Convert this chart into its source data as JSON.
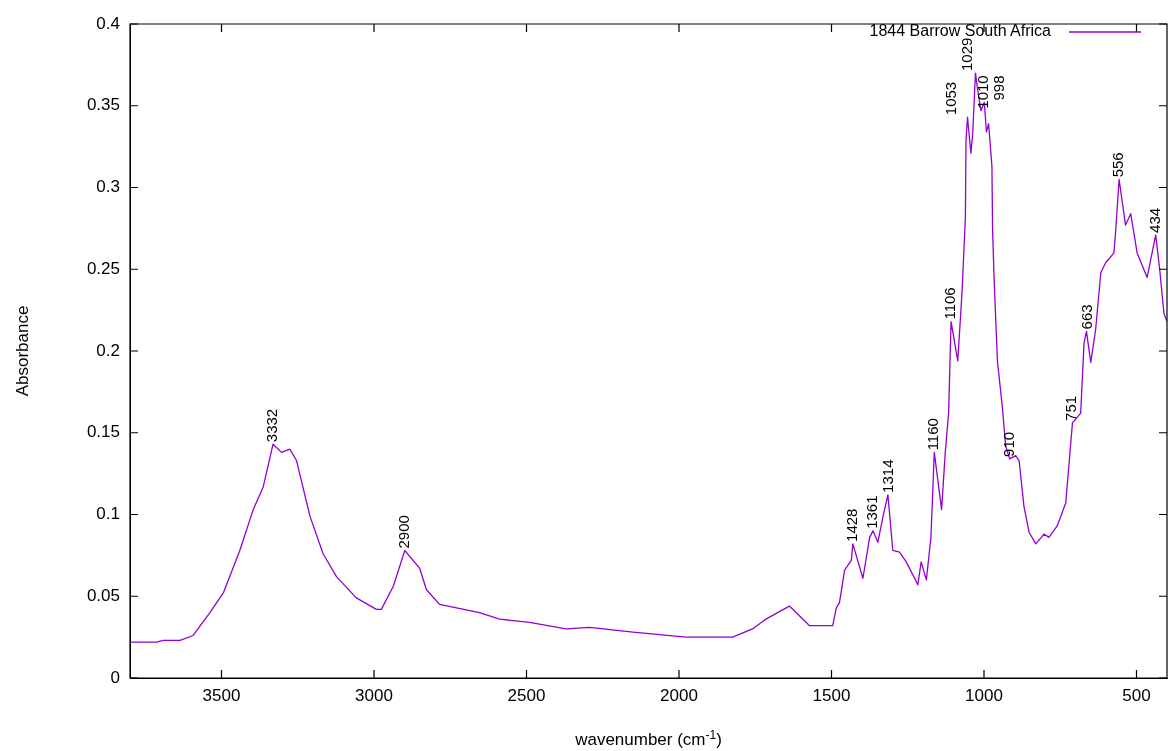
{
  "chart_data": {
    "type": "line",
    "xlabel": "wavenumber (cm$^{-1}$)",
    "ylabel": "Absorbance",
    "xlim": [
      3800,
      400
    ],
    "ylim": [
      0,
      0.4
    ],
    "xticks": [
      3500,
      3000,
      2500,
      2000,
      1500,
      1000,
      500
    ],
    "yticks": [
      0,
      0.05,
      0.1,
      0.15,
      0.2,
      0.25,
      0.3,
      0.35,
      0.4
    ],
    "grid": false,
    "legend": "top right",
    "marker": "none",
    "line_style": "solid",
    "series": [
      {
        "name": "1844 Barrow South Africa",
        "color": "#9400d3",
        "x": [
          3800,
          3713,
          3691,
          3636,
          3593,
          3538,
          3494,
          3440,
          3396,
          3363,
          3331,
          3303,
          3276,
          3254,
          3210,
          3167,
          3123,
          3058,
          2992,
          2976,
          2937,
          2899,
          2850,
          2828,
          2785,
          2654,
          2588,
          2490,
          2370,
          2293,
          2151,
          1977,
          1824,
          1759,
          1715,
          1638,
          1572,
          1496,
          1484,
          1474,
          1457,
          1435,
          1430,
          1397,
          1375,
          1364,
          1348,
          1331,
          1315,
          1299,
          1277,
          1255,
          1217,
          1206,
          1189,
          1174,
          1163,
          1139,
          1127,
          1116,
          1108,
          1086,
          1072,
          1061,
          1059,
          1054,
          1043,
          1037,
          1028,
          1018,
          1010,
          999,
          992,
          985,
          974,
          972,
          967,
          956,
          940,
          929,
          916,
          896,
          885,
          869,
          852,
          830,
          803,
          787,
          760,
          732,
          710,
          683,
          672,
          664,
          650,
          634,
          617,
          601,
          574,
          568,
          557,
          536,
          519,
          498,
          465,
          448,
          437,
          424,
          410,
          400
        ],
        "values": [
          0.022,
          0.022,
          0.023,
          0.023,
          0.026,
          0.04,
          0.052,
          0.078,
          0.103,
          0.117,
          0.143,
          0.138,
          0.14,
          0.133,
          0.099,
          0.076,
          0.062,
          0.049,
          0.042,
          0.042,
          0.056,
          0.078,
          0.067,
          0.054,
          0.045,
          0.04,
          0.036,
          0.034,
          0.03,
          0.031,
          0.028,
          0.025,
          0.025,
          0.03,
          0.036,
          0.044,
          0.032,
          0.032,
          0.043,
          0.046,
          0.066,
          0.072,
          0.082,
          0.061,
          0.086,
          0.09,
          0.083,
          0.099,
          0.112,
          0.078,
          0.077,
          0.071,
          0.057,
          0.071,
          0.06,
          0.086,
          0.138,
          0.103,
          0.138,
          0.162,
          0.218,
          0.194,
          0.236,
          0.282,
          0.329,
          0.343,
          0.321,
          0.333,
          0.37,
          0.356,
          0.347,
          0.352,
          0.334,
          0.339,
          0.313,
          0.275,
          0.245,
          0.194,
          0.166,
          0.142,
          0.134,
          0.136,
          0.133,
          0.105,
          0.089,
          0.082,
          0.088,
          0.086,
          0.093,
          0.107,
          0.156,
          0.162,
          0.205,
          0.212,
          0.193,
          0.213,
          0.248,
          0.254,
          0.26,
          0.274,
          0.305,
          0.277,
          0.284,
          0.26,
          0.245,
          0.261,
          0.271,
          0.25,
          0.223,
          0.218
        ]
      }
    ],
    "annotations": [
      {
        "text": "3332",
        "x": 3331,
        "y": 0.143
      },
      {
        "text": "2900",
        "x": 2899,
        "y": 0.078
      },
      {
        "text": "1428",
        "x": 1430,
        "y": 0.082
      },
      {
        "text": "1361",
        "x": 1364,
        "y": 0.09
      },
      {
        "text": "1314",
        "x": 1315,
        "y": 0.112
      },
      {
        "text": "1160",
        "x": 1163,
        "y": 0.138
      },
      {
        "text": "1106",
        "x": 1108,
        "y": 0.218
      },
      {
        "text": "1053",
        "x": 1054,
        "y": 0.343
      },
      {
        "text": "1029",
        "x": 1028,
        "y": 0.37
      },
      {
        "text": "1010",
        "x": 1010,
        "y": 0.347
      },
      {
        "text": "998",
        "x": 999,
        "y": 0.352
      },
      {
        "text": "910",
        "x": 916,
        "y": 0.134
      },
      {
        "text": "751",
        "x": 710,
        "y": 0.156
      },
      {
        "text": "663",
        "x": 664,
        "y": 0.212
      },
      {
        "text": "556",
        "x": 557,
        "y": 0.305
      },
      {
        "text": "434",
        "x": 437,
        "y": 0.271
      }
    ]
  }
}
